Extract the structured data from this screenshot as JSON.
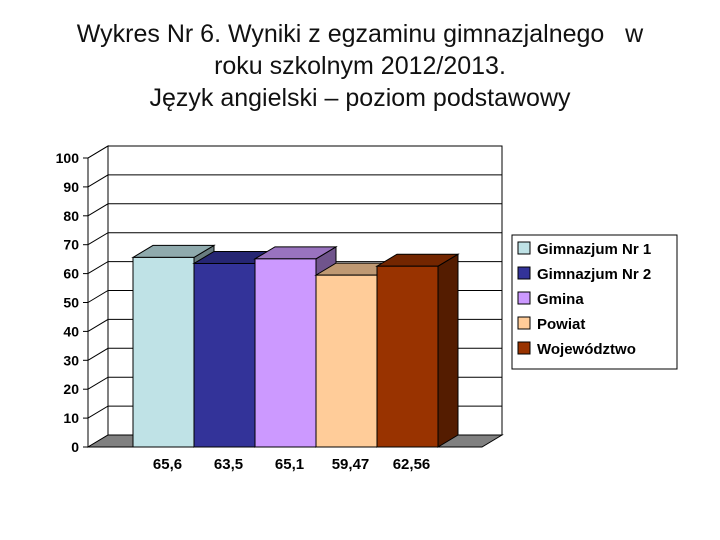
{
  "title_lines": [
    "Wykres Nr 6. Wyniki z egzaminu gimnazjalnego   w",
    "roku szkolnym 2012/2013.",
    "Język angielski – poziom podstawowy"
  ],
  "chart_data": {
    "type": "bar",
    "style": "3d",
    "series": [
      {
        "name": "Gimnazjum Nr 1",
        "value": 65.6,
        "label": "65,6",
        "color": "#bfe2e6"
      },
      {
        "name": "Gimnazjum Nr 2",
        "value": 63.5,
        "label": "63,5",
        "color": "#333399"
      },
      {
        "name": "Gmina",
        "value": 65.1,
        "label": "65,1",
        "color": "#cc99ff"
      },
      {
        "name": "Powiat",
        "value": 59.47,
        "label": "59,47",
        "color": "#ffcc99"
      },
      {
        "name": "Województwo",
        "value": 62.56,
        "label": "62,56",
        "color": "#993300"
      }
    ],
    "ylim": [
      0,
      100
    ],
    "yticks": [
      "0",
      "10",
      "20",
      "30",
      "40",
      "50",
      "60",
      "70",
      "80",
      "90",
      "100"
    ],
    "grid": true,
    "legend_position": "right"
  }
}
